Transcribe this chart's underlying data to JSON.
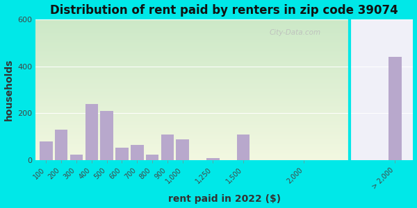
{
  "title": "Distribution of rent paid by renters in zip code 39074",
  "xlabel": "rent paid in 2022 ($)",
  "ylabel": "households",
  "bar_labels": [
    "100",
    "200",
    "300",
    "400",
    "500",
    "600",
    "700",
    "800",
    "900",
    "1,000",
    "1,250",
    "1,500",
    "2,000",
    "> 2,000"
  ],
  "bar_values": [
    80,
    130,
    25,
    240,
    210,
    55,
    65,
    25,
    110,
    90,
    10,
    110,
    0,
    440
  ],
  "bar_color": "#b8a8cc",
  "bg_outer": "#00e8e8",
  "ylim": [
    0,
    600
  ],
  "yticks": [
    0,
    200,
    400,
    600
  ],
  "watermark": "City-Data.com",
  "title_fontsize": 12,
  "axis_label_fontsize": 10,
  "x_positions": [
    0,
    1,
    2,
    3,
    4,
    5,
    6,
    7,
    8,
    9,
    11,
    13,
    17,
    23
  ],
  "split_after": 12,
  "right_bg_color": "#e8e8f0"
}
